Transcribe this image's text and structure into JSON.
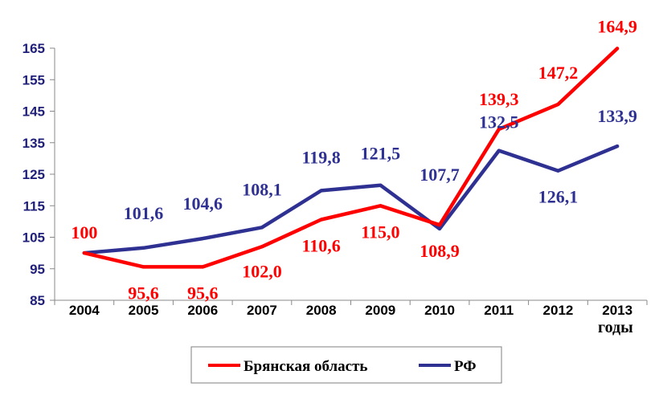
{
  "chart_data": {
    "type": "line",
    "x": [
      "2004",
      "2005",
      "2006",
      "2007",
      "2008",
      "2009",
      "2010",
      "2011",
      "2012",
      "2013"
    ],
    "xunit": "годы",
    "ylim": [
      85,
      165
    ],
    "yticks": [
      85,
      95,
      105,
      115,
      125,
      135,
      145,
      155,
      165
    ],
    "grid": false,
    "legend_position": "bottom",
    "series": [
      {
        "name": "Брянская область",
        "color": "#ff0000",
        "values": [
          100,
          95.6,
          95.6,
          102.0,
          110.6,
          115.0,
          108.9,
          139.3,
          147.2,
          164.9
        ],
        "labels": [
          "100",
          "95,6",
          "95,6",
          "102,0",
          "110,6",
          "115,0",
          "108,9",
          "139,3",
          "147,2",
          "164,9"
        ]
      },
      {
        "name": "РФ",
        "color": "#2e3192",
        "values": [
          100,
          101.6,
          104.6,
          108.1,
          119.8,
          121.5,
          107.7,
          132.5,
          126.1,
          133.9
        ],
        "labels": [
          "",
          "101,6",
          "104,6",
          "108,1",
          "119,8",
          "121,5",
          "107,7",
          "132,5",
          "126,1",
          "133,9"
        ]
      }
    ]
  }
}
